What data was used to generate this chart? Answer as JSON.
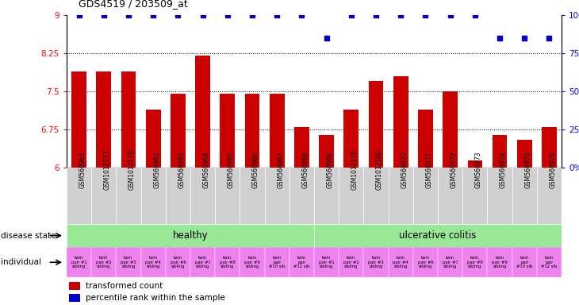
{
  "title": "GDS4519 / 203509_at",
  "samples": [
    "GSM560961",
    "GSM1012177",
    "GSM1012179",
    "GSM560962",
    "GSM560963",
    "GSM560964",
    "GSM560965",
    "GSM560966",
    "GSM560967",
    "GSM560968",
    "GSM560969",
    "GSM1012178",
    "GSM1012180",
    "GSM560970",
    "GSM560971",
    "GSM560972",
    "GSM560973",
    "GSM560974",
    "GSM560975",
    "GSM560976"
  ],
  "bar_values": [
    7.9,
    7.9,
    7.9,
    7.15,
    7.45,
    8.2,
    7.45,
    7.45,
    7.45,
    6.8,
    6.65,
    7.15,
    7.7,
    7.8,
    7.15,
    7.5,
    6.15,
    6.65,
    6.55,
    6.8
  ],
  "blue_dot_pct": [
    100,
    100,
    100,
    100,
    100,
    100,
    100,
    100,
    100,
    100,
    85,
    100,
    100,
    100,
    100,
    100,
    100,
    85,
    85,
    85
  ],
  "ylim_left": [
    6.0,
    9.0
  ],
  "yticks_left": [
    6.0,
    6.75,
    7.5,
    8.25,
    9.0
  ],
  "ytick_labels_left": [
    "6",
    "6.75",
    "7.5",
    "8.25",
    "9"
  ],
  "yticks_right": [
    0,
    25,
    50,
    75,
    100
  ],
  "ytick_labels_right": [
    "0%",
    "25%",
    "50%",
    "75%",
    "100%"
  ],
  "ylim_right": [
    0,
    100
  ],
  "healthy_count": 10,
  "individual_labels": [
    "twin\npair #1\nsibling",
    "twin\npair #2\nsibling",
    "twin\npair #3\nsibling",
    "twin\npair #4\nsibling",
    "twin\npair #6\nsibling",
    "twin\npair #7\nsibling",
    "twin\npair #8\nsibling",
    "twin\npair #9\nsibling",
    "twin\npair\n#10 sib",
    "twin\npair\n#12 sib",
    "twin\npair #1\nsibling",
    "twin\npair #2\nsibling",
    "twin\npair #3\nsibling",
    "twin\npair #4\nsibling",
    "twin\npair #6\nsibling",
    "twin\npair #7\nsibling",
    "twin\npair #8\nsibling",
    "twin\npair #9\nsibling",
    "twin\npair\n#10 sib",
    "twin\npair\n#12 sib"
  ],
  "healthy_color": "#98e898",
  "colitis_color": "#98e898",
  "individual_color": "#ee82ee",
  "bar_color": "#cc0000",
  "dot_color": "#0000cc",
  "sample_bg": "#d0d0d0",
  "healthy_label": "healthy",
  "colitis_label": "ulcerative colitis",
  "legend_bar": "transformed count",
  "legend_dot": "percentile rank within the sample",
  "bar_bottom": 6.0
}
